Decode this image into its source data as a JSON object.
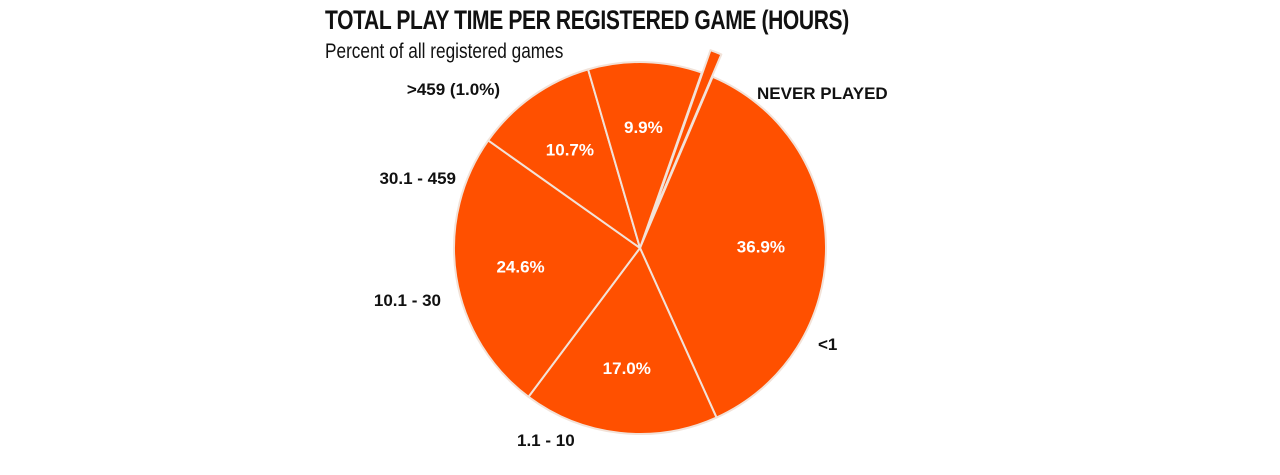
{
  "chart_data": {
    "type": "pie",
    "title": "TOTAL PLAY TIME PER REGISTERED GAME (HOURS)",
    "subtitle": "Percent of all registered games",
    "slice_color": "#FF5000",
    "border_color": "#F2E2D8",
    "slices": [
      {
        "label": "NEVER PLAYED",
        "value": 36.9,
        "value_label": "36.9%"
      },
      {
        "label": "<1",
        "value": 17.0,
        "value_label": "17.0%"
      },
      {
        "label": "1.1 - 10",
        "value": 24.6,
        "value_label": "24.6%"
      },
      {
        "label": "10.1 - 30",
        "value": 10.7,
        "value_label": "10.7%"
      },
      {
        "label": "30.1 - 459",
        "value": 9.9,
        "value_label": "9.9%"
      },
      {
        "label": ">459 (1.0%)",
        "value": 1.0,
        "value_label": "",
        "exploded": true
      }
    ]
  }
}
